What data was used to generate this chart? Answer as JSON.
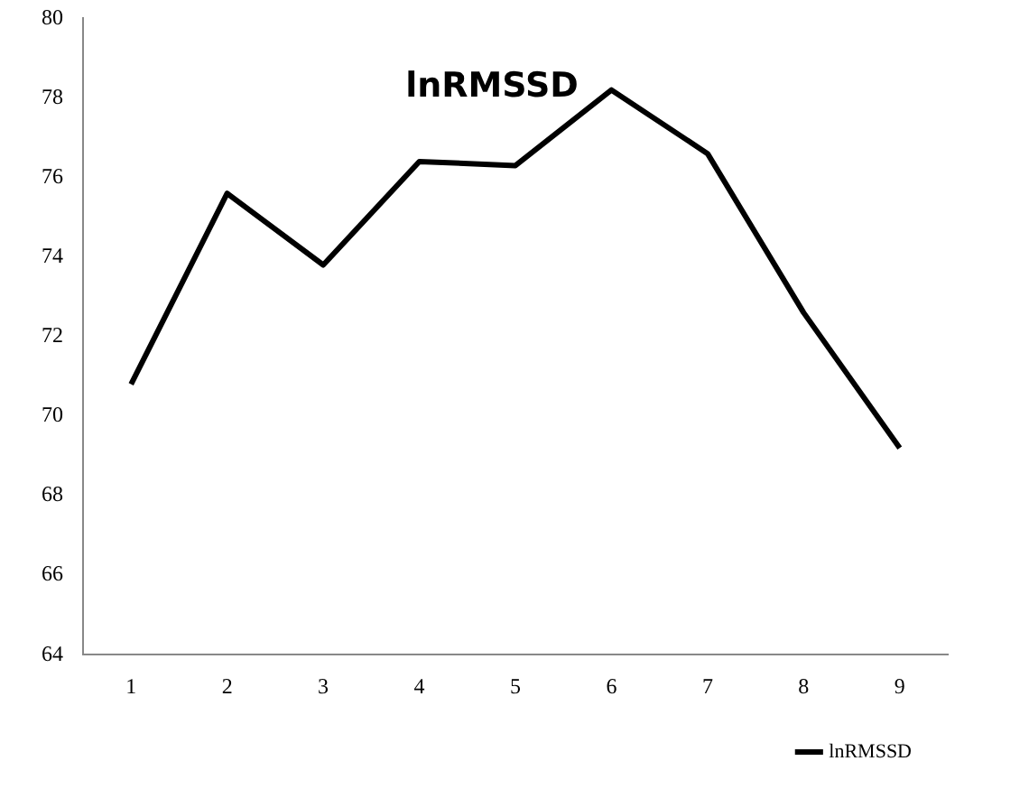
{
  "chart_data": {
    "type": "line",
    "title": "lnRMSSD",
    "categories": [
      "1",
      "2",
      "3",
      "4",
      "5",
      "6",
      "7",
      "8",
      "9"
    ],
    "series": [
      {
        "name": "lnRMSSD",
        "color": "#000000",
        "values": [
          70.8,
          75.6,
          73.8,
          76.4,
          76.3,
          78.2,
          76.6,
          72.6,
          69.2
        ]
      }
    ],
    "ylim": [
      64,
      80
    ],
    "yticks": [
      64,
      66,
      68,
      70,
      72,
      74,
      76,
      78,
      80
    ],
    "grid": false,
    "legend": "bottom right",
    "marker": "none",
    "line_style": "solid"
  }
}
